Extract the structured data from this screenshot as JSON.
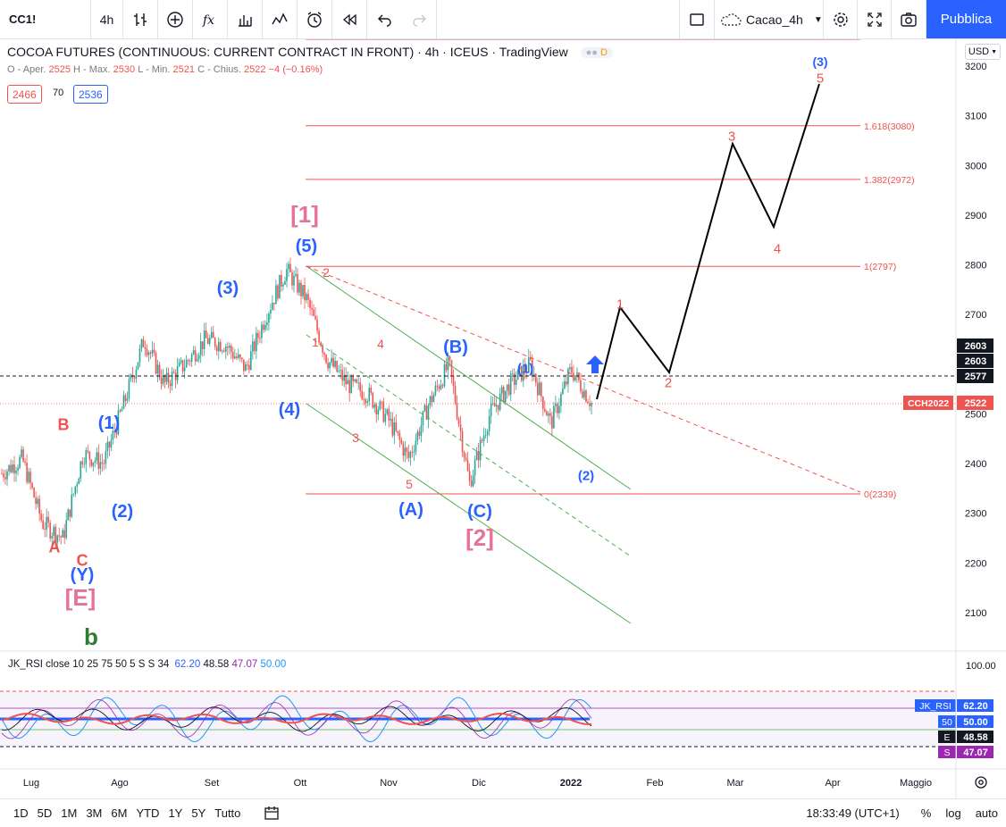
{
  "toolbar": {
    "symbol": "CC1!",
    "interval": "4h",
    "layout_name": "Cacao_4h",
    "publish_label": "Pubblica",
    "icons": [
      "bar-style-icon",
      "indicators-icon",
      "fx-icon",
      "bars-icon",
      "line-icon",
      "alert-icon",
      "replay-icon",
      "undo-icon",
      "redo-icon",
      "square-icon",
      "cloud-icon",
      "settings-icon",
      "fullscreen-icon",
      "camera-icon"
    ]
  },
  "legend": {
    "title": "COCOA FUTURES (CONTINUOUS: CURRENT CONTRACT IN FRONT) · 4h · ICEUS · TradingView",
    "ohlc": "O - Apertu. 2525 H - Max. 2530 L - Min. 2521 C - Chius. 2522 −4 (−0.16%)",
    "ohlc_parts": {
      "o_label": "O - Aper.",
      "o": "2525",
      "h_label": "H - Max.",
      "h": "2530",
      "l_label": "L - Min.",
      "l": "2521",
      "c_label": "C - Chius.",
      "c": "2522",
      "chg": "−4 (−0.16%)"
    },
    "chip_left": "2466",
    "chip_mid": "70",
    "chip_right": "2536",
    "d_badge": "D"
  },
  "currency": "USD",
  "chart_data": {
    "type": "line",
    "title": "COCOA FUTURES (CONTINUOUS: CURRENT CONTRACT IN FRONT) · 4h · ICEUS · TradingView",
    "xlabel": "",
    "ylabel": "",
    "x_ticks": [
      "Lug",
      "Ago",
      "Set",
      "Ott",
      "Nov",
      "Dic",
      "2022",
      "Feb",
      "Mar",
      "Apr",
      "Maggio"
    ],
    "y_ticks": [
      2100,
      2200,
      2300,
      2400,
      2500,
      2600,
      2700,
      2800,
      2900,
      3000,
      3100,
      3200
    ],
    "ylim": [
      2000,
      3250
    ],
    "series": [
      {
        "x": [
          "Jul 1",
          "Jul 8",
          "Jul 15",
          "Jul 20",
          "Jul 27",
          "Aug 3",
          "Aug 10",
          "Aug 17",
          "Aug 24",
          "Aug 31",
          "Sep 7",
          "Sep 14",
          "Sep 21",
          "Sep 28",
          "Oct 1",
          "Oct 5",
          "Oct 12",
          "Oct 19",
          "Oct 26",
          "Nov 2",
          "Nov 9",
          "Nov 16",
          "Nov 23",
          "Nov 30",
          "Dec 7",
          "Dec 14",
          "Dec 21",
          "Dec 28",
          "Jan 4",
          "Jan 10"
        ],
        "values": [
          2380,
          2410,
          2280,
          2250,
          2420,
          2400,
          2520,
          2650,
          2560,
          2600,
          2650,
          2640,
          2590,
          2700,
          2790,
          2730,
          2610,
          2560,
          2540,
          2490,
          2410,
          2520,
          2600,
          2360,
          2500,
          2560,
          2600,
          2480,
          2590,
          2522
        ]
      }
    ],
    "projection": [
      {
        "x": "Jan 10",
        "y": 2522
      },
      {
        "x": "Jan 17",
        "y": 2710
      },
      {
        "x": "Feb 5",
        "y": 2590
      },
      {
        "x": "Feb 26",
        "y": 3040
      },
      {
        "x": "Mar 12",
        "y": 2880
      },
      {
        "x": "Mar 28",
        "y": 3170
      }
    ],
    "horizontal_levels": [
      {
        "label": "1.618(3080)",
        "value": 3080
      },
      {
        "label": "1.382(2972)",
        "value": 2972
      },
      {
        "label": "1(2797)",
        "value": 2797
      },
      {
        "label": "0(2339)",
        "value": 2339
      }
    ],
    "price_labels": [
      {
        "text": "2603",
        "bg": "#131722"
      },
      {
        "text": "2603",
        "bg": "#131722"
      },
      {
        "text": "2577",
        "bg": "#131722"
      },
      {
        "text": "2522",
        "bg": "#ef5350"
      }
    ],
    "contract_label": "CCH2022",
    "annotations": {
      "blue": [
        "(3)",
        "(1)",
        "(2)",
        "(Y)",
        "(3)",
        "(5)",
        "(4)",
        "(B)",
        "(A)",
        "(C)",
        "(1)",
        "(2)"
      ],
      "red": [
        "B",
        "A",
        "C",
        "2",
        "1",
        "4",
        "3",
        "5",
        "2",
        "3",
        "4",
        "5",
        "1",
        "2"
      ],
      "pink": [
        "[1]",
        "[2]",
        "[E]"
      ],
      "green": [
        "b"
      ]
    },
    "labels": [
      {
        "text": "(3)",
        "color": "blue"
      },
      {
        "text": "5",
        "color": "red"
      },
      {
        "text": "3",
        "color": "red"
      },
      {
        "text": "4",
        "color": "red"
      },
      {
        "text": "1",
        "color": "red"
      },
      {
        "text": "2",
        "color": "red"
      },
      {
        "text": "[1]",
        "color": "pink"
      },
      {
        "text": "(5)",
        "color": "blue"
      },
      {
        "text": "(3)",
        "color": "blue"
      },
      {
        "text": "2",
        "color": "red"
      },
      {
        "text": "1",
        "color": "red"
      },
      {
        "text": "4",
        "color": "red"
      },
      {
        "text": "(B)",
        "color": "blue"
      },
      {
        "text": "(1)",
        "color": "blue"
      },
      {
        "text": "(4)",
        "color": "blue"
      },
      {
        "text": "3",
        "color": "red"
      },
      {
        "text": "5",
        "color": "red"
      },
      {
        "text": "(A)",
        "color": "blue"
      },
      {
        "text": "(C)",
        "color": "blue"
      },
      {
        "text": "[2]",
        "color": "pink"
      },
      {
        "text": "(2)",
        "color": "blue"
      },
      {
        "text": "B",
        "color": "red"
      },
      {
        "text": "(1)",
        "color": "blue"
      },
      {
        "text": "(2)",
        "color": "blue"
      },
      {
        "text": "A",
        "color": "red"
      },
      {
        "text": "C",
        "color": "red"
      },
      {
        "text": "(Y)",
        "color": "blue"
      },
      {
        "text": "[E]",
        "color": "pink"
      },
      {
        "text": "b",
        "color": "green"
      }
    ]
  },
  "rsi": {
    "legend_name": "JK_RSI close 10 25 75 50 5 S S 34",
    "v1": "62.20",
    "v2": "48.58",
    "v3": "47.07",
    "v4": "50.00",
    "axis_top": "100.00",
    "badges": [
      {
        "tag": "JK_RSI",
        "value": "62.20",
        "color": "#2962ff"
      },
      {
        "tag": "50",
        "value": "50.00",
        "color": "#2962ff"
      },
      {
        "tag": "E",
        "value": "48.58",
        "color": "#131722"
      },
      {
        "tag": "S",
        "value": "47.07",
        "color": "#9c27b0"
      }
    ]
  },
  "bottombar": {
    "ranges": [
      "1D",
      "5D",
      "1M",
      "3M",
      "6M",
      "YTD",
      "1Y",
      "5Y",
      "Tutto"
    ],
    "clock": "18:33:49 (UTC+1)",
    "pct": "%",
    "log": "log",
    "auto": "auto"
  }
}
